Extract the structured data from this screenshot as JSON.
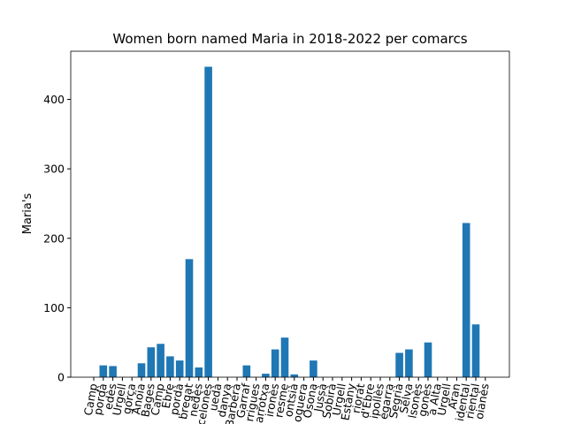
{
  "chart_data": {
    "type": "bar",
    "title": "Women born named Maria in 2018-2022 per comarcs",
    "y_label": "Maria's",
    "categories": [
      "Camp",
      "pordà",
      "edès",
      "Urgell",
      "gorça",
      "Anoia",
      "Bages",
      "Camp",
      "Ebre",
      "pordà",
      "bregat",
      "nedès",
      "celonès",
      "uedà",
      "danya",
      "Barberà",
      "Garraf",
      "rrigues",
      "arrotxa",
      "ironès",
      "resme",
      "ontsià",
      "oguera",
      "Osona",
      "Jussà",
      "Sobirà",
      "Urgell",
      "Estany",
      "riorat",
      "d'Ebre",
      "ipollès",
      "egarra",
      "Segrià",
      "Selva",
      "lsonès",
      "gonès",
      "a Alta",
      "Urgell",
      "Aran",
      "idental",
      "riental",
      "oianès"
    ],
    "values": [
      0,
      17,
      16,
      0,
      0,
      20,
      43,
      48,
      30,
      24,
      170,
      14,
      447,
      0,
      0,
      0,
      17,
      0,
      5,
      40,
      57,
      4,
      0,
      24,
      0,
      0,
      0,
      0,
      0,
      0,
      0,
      0,
      35,
      40,
      0,
      50,
      0,
      0,
      0,
      222,
      76,
      0
    ],
    "color": "#1f77b4",
    "ylim": [
      0,
      469.35
    ],
    "yticks": [
      0,
      100,
      200,
      300,
      400
    ]
  }
}
